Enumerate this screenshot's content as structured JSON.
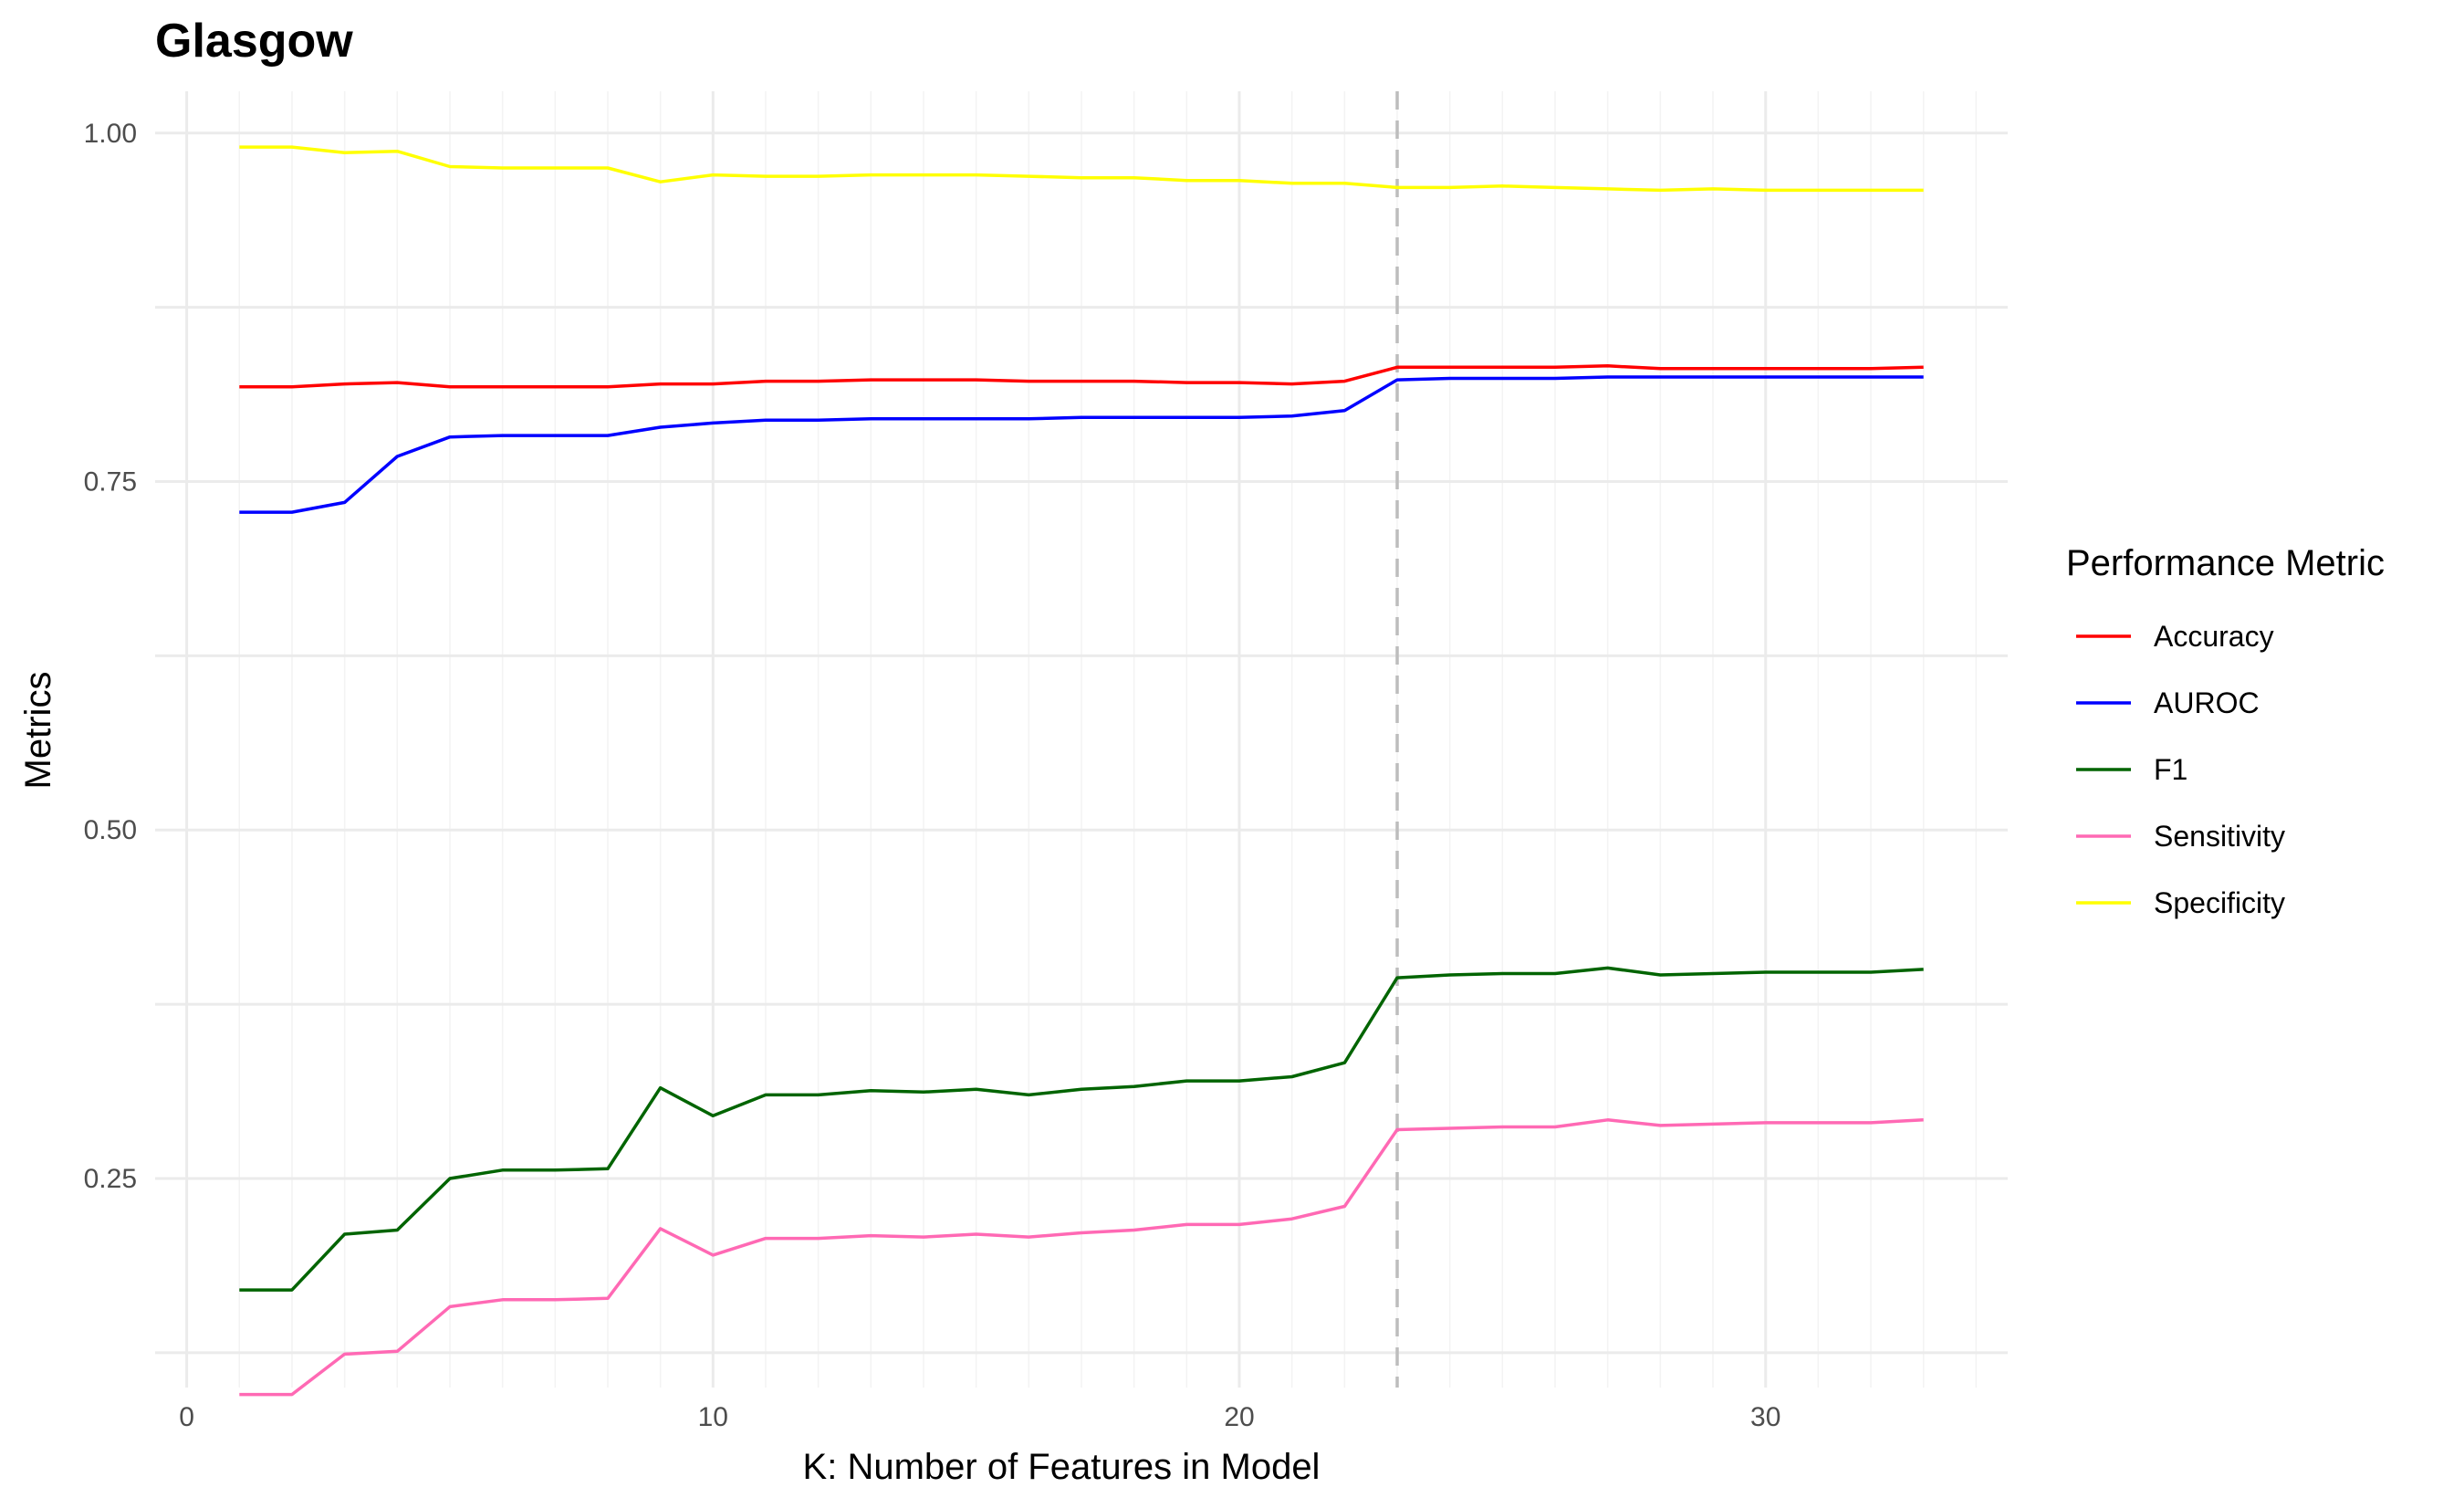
{
  "chart_data": {
    "type": "line",
    "title": "Glasgow",
    "xlabel": "K: Number of Features in Model",
    "ylabel": "Metrics",
    "xlim": [
      -0.6,
      34.6
    ],
    "ylim": [
      0.1,
      1.03
    ],
    "x_ticks": [
      0,
      10,
      20,
      30
    ],
    "y_ticks": [
      0.25,
      0.5,
      0.75,
      1.0
    ],
    "x_tick_labels": [
      "0",
      "10",
      "20",
      "30"
    ],
    "y_tick_labels": [
      "0.25",
      "0.50",
      "0.75",
      "1.00"
    ],
    "grid": true,
    "vline": {
      "x": 23,
      "style": "dashed",
      "color": "#bdbdbd"
    },
    "legend": {
      "title": "Performance Metric",
      "position": "right"
    },
    "x": [
      1,
      2,
      3,
      4,
      5,
      6,
      7,
      8,
      9,
      10,
      11,
      12,
      13,
      14,
      15,
      16,
      17,
      18,
      19,
      20,
      21,
      22,
      23,
      24,
      25,
      26,
      27,
      28,
      29,
      30,
      31,
      32,
      33
    ],
    "series": [
      {
        "name": "Accuracy",
        "color": "#ff0000",
        "values": [
          0.818,
          0.818,
          0.82,
          0.821,
          0.818,
          0.818,
          0.818,
          0.818,
          0.82,
          0.82,
          0.822,
          0.822,
          0.823,
          0.823,
          0.823,
          0.822,
          0.822,
          0.822,
          0.821,
          0.821,
          0.82,
          0.822,
          0.832,
          0.832,
          0.832,
          0.832,
          0.833,
          0.831,
          0.831,
          0.831,
          0.831,
          0.831,
          0.832
        ]
      },
      {
        "name": "AUROC",
        "color": "#0000ff",
        "values": [
          0.728,
          0.728,
          0.735,
          0.768,
          0.782,
          0.783,
          0.783,
          0.783,
          0.789,
          0.792,
          0.794,
          0.794,
          0.795,
          0.795,
          0.795,
          0.795,
          0.796,
          0.796,
          0.796,
          0.796,
          0.797,
          0.801,
          0.823,
          0.824,
          0.824,
          0.824,
          0.825,
          0.825,
          0.825,
          0.825,
          0.825,
          0.825,
          0.825
        ]
      },
      {
        "name": "F1",
        "color": "#006400",
        "values": [
          0.17,
          0.17,
          0.21,
          0.213,
          0.25,
          0.256,
          0.256,
          0.257,
          0.315,
          0.295,
          0.31,
          0.31,
          0.313,
          0.312,
          0.314,
          0.31,
          0.314,
          0.316,
          0.32,
          0.32,
          0.323,
          0.333,
          0.394,
          0.396,
          0.397,
          0.397,
          0.401,
          0.396,
          0.397,
          0.398,
          0.398,
          0.398,
          0.4
        ]
      },
      {
        "name": "Sensitivity",
        "color": "#ff69b4",
        "values": [
          0.095,
          0.095,
          0.124,
          0.126,
          0.158,
          0.163,
          0.163,
          0.164,
          0.214,
          0.195,
          0.207,
          0.207,
          0.209,
          0.208,
          0.21,
          0.208,
          0.211,
          0.213,
          0.217,
          0.217,
          0.221,
          0.23,
          0.285,
          0.286,
          0.287,
          0.287,
          0.292,
          0.288,
          0.289,
          0.29,
          0.29,
          0.29,
          0.292
        ]
      },
      {
        "name": "Specificity",
        "color": "#ffff00",
        "values": [
          0.99,
          0.99,
          0.986,
          0.987,
          0.976,
          0.975,
          0.975,
          0.975,
          0.965,
          0.97,
          0.969,
          0.969,
          0.97,
          0.97,
          0.97,
          0.969,
          0.968,
          0.968,
          0.966,
          0.966,
          0.964,
          0.964,
          0.961,
          0.961,
          0.962,
          0.961,
          0.96,
          0.959,
          0.96,
          0.959,
          0.959,
          0.959,
          0.959
        ]
      }
    ]
  }
}
